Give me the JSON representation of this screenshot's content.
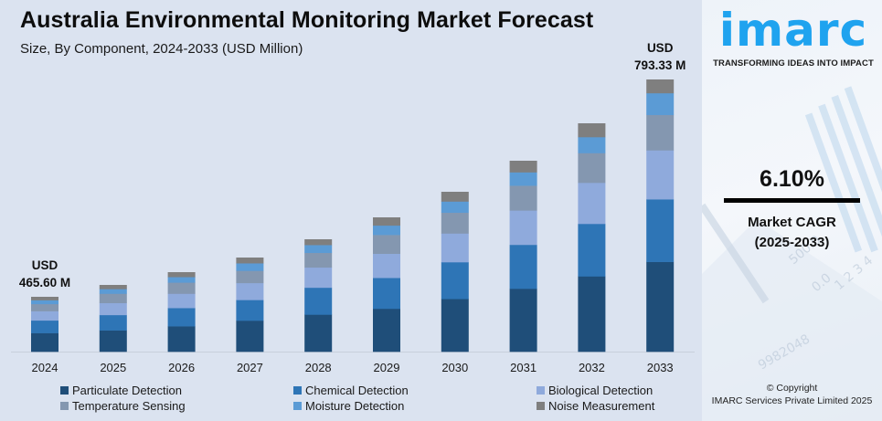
{
  "header": {
    "title": "Australia Environmental Monitoring Market Forecast",
    "subtitle": "Size, By Component, 2024-2033 (USD Million)"
  },
  "chart_data": {
    "type": "bar",
    "stacked": true,
    "title": "Australia Environmental Monitoring Market Forecast",
    "subtitle": "Size, By Component, 2024-2033 (USD Million)",
    "xlabel": "",
    "ylabel": "USD Million",
    "grid": false,
    "legend_position": "bottom",
    "categories": [
      "2024",
      "2025",
      "2026",
      "2027",
      "2028",
      "2029",
      "2030",
      "2031",
      "2032",
      "2033"
    ],
    "totals_labeled": {
      "2024": {
        "line1": "USD",
        "line2": "465.60 M",
        "value": 465.6
      },
      "2033": {
        "line1": "USD",
        "line2": "793.33 M",
        "value": 793.33
      }
    },
    "relative_bar_height": [
      60,
      73,
      87,
      103,
      123,
      147,
      175,
      209,
      250,
      298
    ],
    "series": [
      {
        "name": "Particulate Detection",
        "color": "#1f4e79",
        "share": [
          0.34,
          0.32,
          0.32,
          0.33,
          0.33,
          0.32,
          0.33,
          0.33,
          0.33,
          0.33
        ]
      },
      {
        "name": "Chemical Detection",
        "color": "#2e75b6",
        "share": [
          0.23,
          0.23,
          0.23,
          0.22,
          0.24,
          0.23,
          0.23,
          0.23,
          0.23,
          0.23
        ]
      },
      {
        "name": "Biological Detection",
        "color": "#8faadc",
        "share": [
          0.17,
          0.18,
          0.18,
          0.18,
          0.18,
          0.18,
          0.18,
          0.18,
          0.18,
          0.18
        ]
      },
      {
        "name": "Temperature Sensing",
        "color": "#8497b0",
        "share": [
          0.13,
          0.14,
          0.14,
          0.13,
          0.13,
          0.14,
          0.13,
          0.13,
          0.13,
          0.13
        ]
      },
      {
        "name": "Moisture Detection",
        "color": "#5b9bd5",
        "share": [
          0.07,
          0.07,
          0.07,
          0.08,
          0.07,
          0.07,
          0.07,
          0.07,
          0.07,
          0.08
        ]
      },
      {
        "name": "Noise Measurement",
        "color": "#7f7f7f",
        "share": [
          0.06,
          0.06,
          0.06,
          0.06,
          0.05,
          0.06,
          0.06,
          0.06,
          0.06,
          0.05
        ]
      }
    ]
  },
  "legend": {
    "items": [
      {
        "label": "Particulate Detection",
        "color": "#1f4e79"
      },
      {
        "label": "Chemical Detection",
        "color": "#2e75b6"
      },
      {
        "label": "Biological Detection",
        "color": "#8faadc"
      },
      {
        "label": "Temperature Sensing",
        "color": "#8497b0"
      },
      {
        "label": "Moisture Detection",
        "color": "#5b9bd5"
      },
      {
        "label": "Noise Measurement",
        "color": "#7f7f7f"
      }
    ]
  },
  "sidebar": {
    "logo_text": "imarc",
    "tagline": "TRANSFORMING IDEAS INTO IMPACT",
    "cagr_value": "6.10%",
    "cagr_label_line1": "Market CAGR",
    "cagr_label_line2": "(2025-2033)",
    "copyright_line1": "© Copyright",
    "copyright_line2": "IMARC Services Private Limited 2025",
    "brand_color": "#1fa3ef"
  }
}
